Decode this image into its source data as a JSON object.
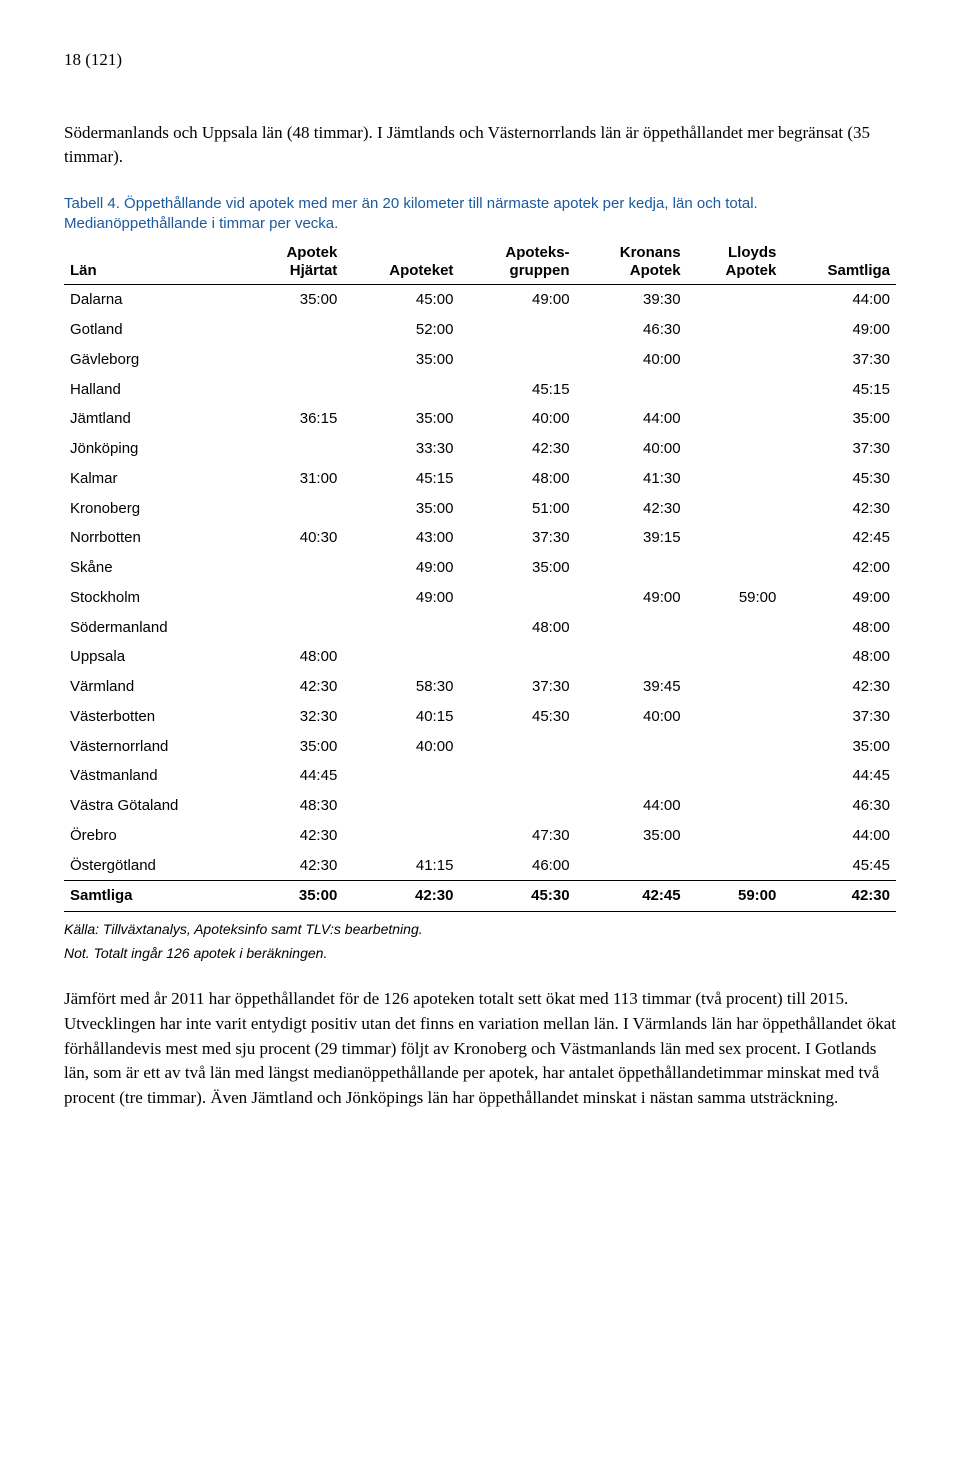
{
  "page_number": "18 (121)",
  "intro_text": "Södermanlands och Uppsala län (48 timmar). I Jämtlands och Västernorrlands län är öppethållandet mer begränsat (35 timmar).",
  "table_caption": "Tabell 4. Öppethållande vid apotek med mer än 20 kilometer till närmaste apotek per kedja, län och total. Medianöppethållande i timmar per vecka.",
  "table": {
    "columns": [
      "Län",
      "Apotek Hjärtat",
      "Apoteket",
      "Apoteks-gruppen",
      "Kronans Apotek",
      "Lloyds Apotek",
      "Samtliga"
    ],
    "rows": [
      [
        "Dalarna",
        "35:00",
        "45:00",
        "49:00",
        "39:30",
        "",
        "44:00"
      ],
      [
        "Gotland",
        "",
        "52:00",
        "",
        "46:30",
        "",
        "49:00"
      ],
      [
        "Gävleborg",
        "",
        "35:00",
        "",
        "40:00",
        "",
        "37:30"
      ],
      [
        "Halland",
        "",
        "",
        "45:15",
        "",
        "",
        "45:15"
      ],
      [
        "Jämtland",
        "36:15",
        "35:00",
        "40:00",
        "44:00",
        "",
        "35:00"
      ],
      [
        "Jönköping",
        "",
        "33:30",
        "42:30",
        "40:00",
        "",
        "37:30"
      ],
      [
        "Kalmar",
        "31:00",
        "45:15",
        "48:00",
        "41:30",
        "",
        "45:30"
      ],
      [
        "Kronoberg",
        "",
        "35:00",
        "51:00",
        "42:30",
        "",
        "42:30"
      ],
      [
        "Norrbotten",
        "40:30",
        "43:00",
        "37:30",
        "39:15",
        "",
        "42:45"
      ],
      [
        "Skåne",
        "",
        "49:00",
        "35:00",
        "",
        "",
        "42:00"
      ],
      [
        "Stockholm",
        "",
        "49:00",
        "",
        "49:00",
        "59:00",
        "49:00"
      ],
      [
        "Södermanland",
        "",
        "",
        "48:00",
        "",
        "",
        "48:00"
      ],
      [
        "Uppsala",
        "48:00",
        "",
        "",
        "",
        "",
        "48:00"
      ],
      [
        "Värmland",
        "42:30",
        "58:30",
        "37:30",
        "39:45",
        "",
        "42:30"
      ],
      [
        "Västerbotten",
        "32:30",
        "40:15",
        "45:30",
        "40:00",
        "",
        "37:30"
      ],
      [
        "Västernorrland",
        "35:00",
        "40:00",
        "",
        "",
        "",
        "35:00"
      ],
      [
        "Västmanland",
        "44:45",
        "",
        "",
        "",
        "",
        "44:45"
      ],
      [
        "Västra Götaland",
        "48:30",
        "",
        "",
        "44:00",
        "",
        "46:30"
      ],
      [
        "Örebro",
        "42:30",
        "",
        "47:30",
        "35:00",
        "",
        "44:00"
      ],
      [
        "Östergötland",
        "42:30",
        "41:15",
        "46:00",
        "",
        "",
        "45:45"
      ]
    ],
    "total_row": [
      "Samtliga",
      "35:00",
      "42:30",
      "45:30",
      "42:45",
      "59:00",
      "42:30"
    ]
  },
  "source_line": "Källa: Tillväxtanalys, Apoteksinfo samt TLV:s bearbetning.",
  "note_line": "Not. Totalt ingår 126 apotek i beräkningen.",
  "body_text": "Jämfört med år 2011 har öppethållandet för de 126 apoteken totalt sett ökat med 113 timmar (två procent) till 2015. Utvecklingen har inte varit entydigt positiv utan det finns en variation mellan län. I Värmlands län har öppethållandet ökat förhållandevis mest med sju procent (29 timmar) följt av Kronoberg och Västmanlands län med sex procent. I Gotlands län, som är ett av två län med längst medianöppethållande per apotek, har antalet öppethållandetimmar minskat med två procent (tre timmar). Även Jämtland och Jönköpings län har öppethållandet minskat i nästan samma utsträckning."
}
